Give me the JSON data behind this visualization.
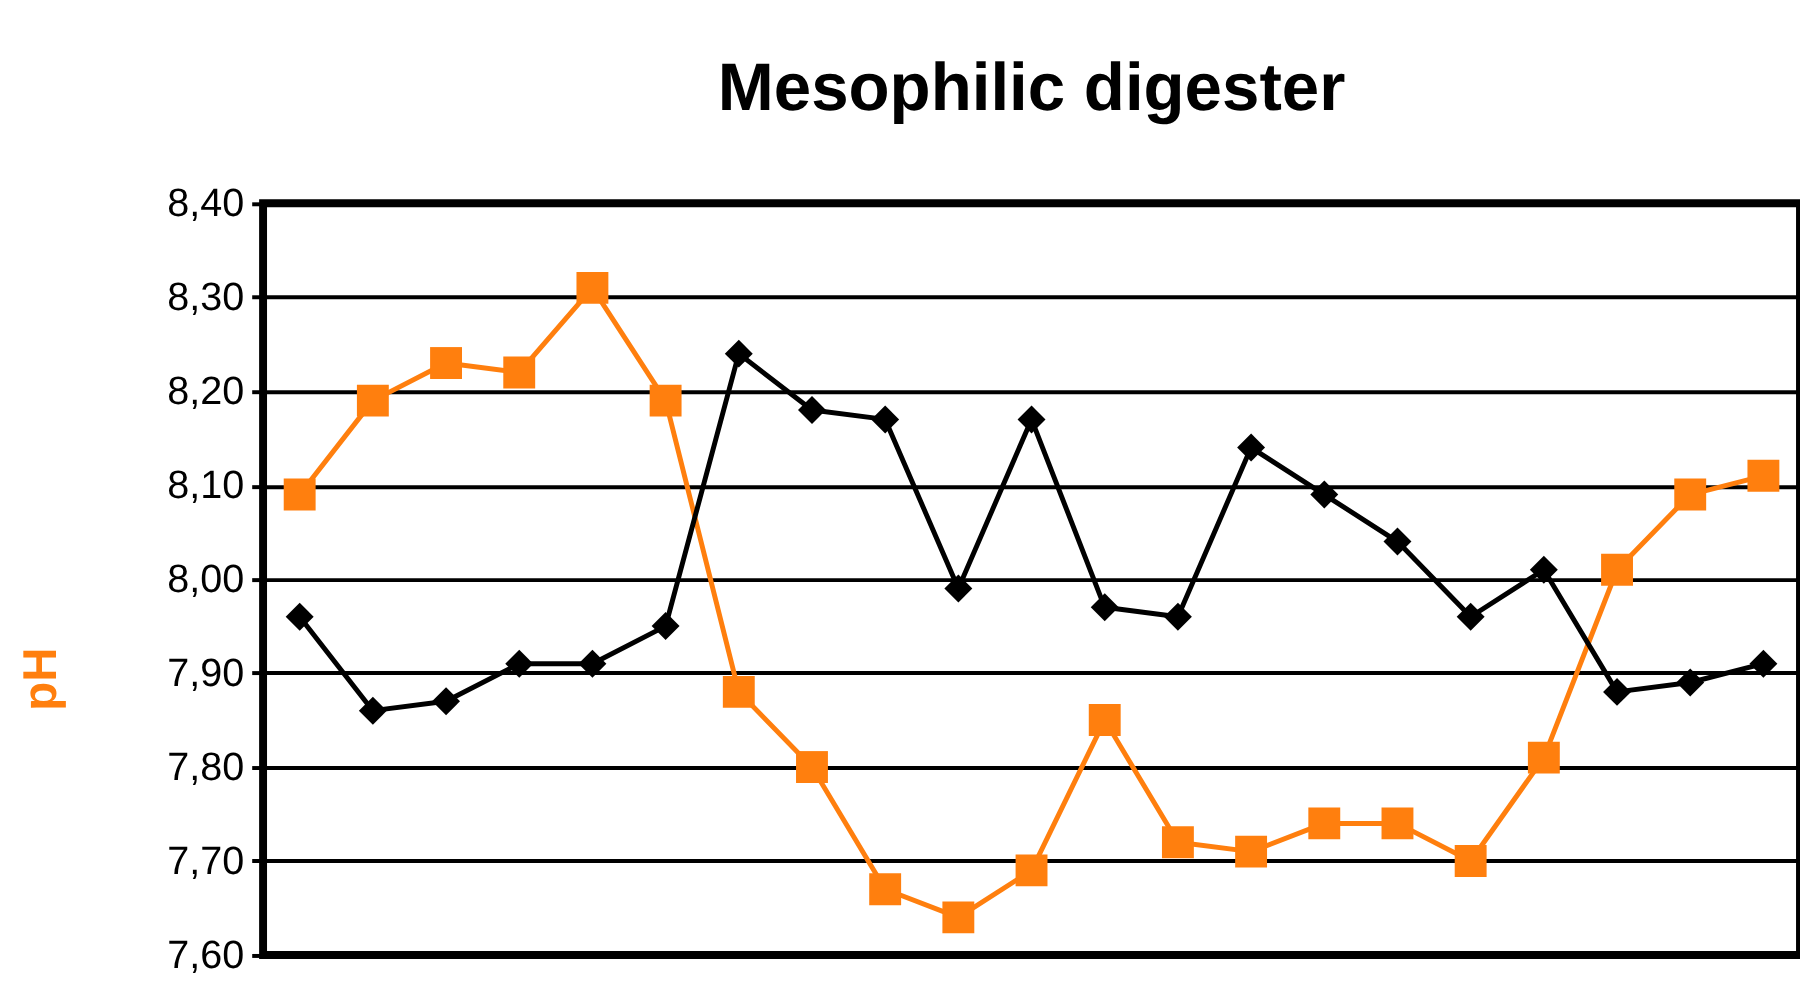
{
  "chart_data": {
    "type": "line",
    "title": "Mesophilic digester",
    "ylabel": "pH",
    "categories": [
      null,
      null,
      null,
      null,
      null,
      null,
      null,
      null,
      null,
      null,
      null,
      null,
      null,
      null,
      null,
      null,
      null,
      null,
      null,
      null,
      null
    ],
    "series": [
      {
        "color": "#ff7f0e",
        "marker": "square",
        "values": [
          8.09,
          8.19,
          8.23,
          8.22,
          8.31,
          8.19,
          7.88,
          7.8,
          7.67,
          7.64,
          7.69,
          7.85,
          7.72,
          7.71,
          7.74,
          7.74,
          7.7,
          7.81,
          8.01,
          8.09,
          8.11
        ]
      },
      {
        "color": "#000000",
        "marker": "diamond",
        "values": [
          7.96,
          7.86,
          7.87,
          7.91,
          7.91,
          7.95,
          8.24,
          8.18,
          8.17,
          7.99,
          8.17,
          7.97,
          7.96,
          8.14,
          8.09,
          8.04,
          7.96,
          8.01,
          7.88,
          7.89,
          7.91
        ]
      }
    ],
    "ylim": [
      7.6,
      8.4
    ],
    "yticks": [
      {
        "value": 7.6,
        "label": "7,60"
      },
      {
        "value": 7.7,
        "label": "7,70"
      },
      {
        "value": 7.8,
        "label": "7,80"
      },
      {
        "value": 7.9,
        "label": "7,90"
      },
      {
        "value": 8.0,
        "label": "8,00"
      },
      {
        "value": 8.1,
        "label": "8,10"
      },
      {
        "value": 8.2,
        "label": "8,20"
      },
      {
        "value": 8.3,
        "label": "8,30"
      },
      {
        "value": 8.4,
        "label": "8,40"
      }
    ],
    "grid": "y",
    "tick_labels": "y",
    "line_style": "solid"
  }
}
